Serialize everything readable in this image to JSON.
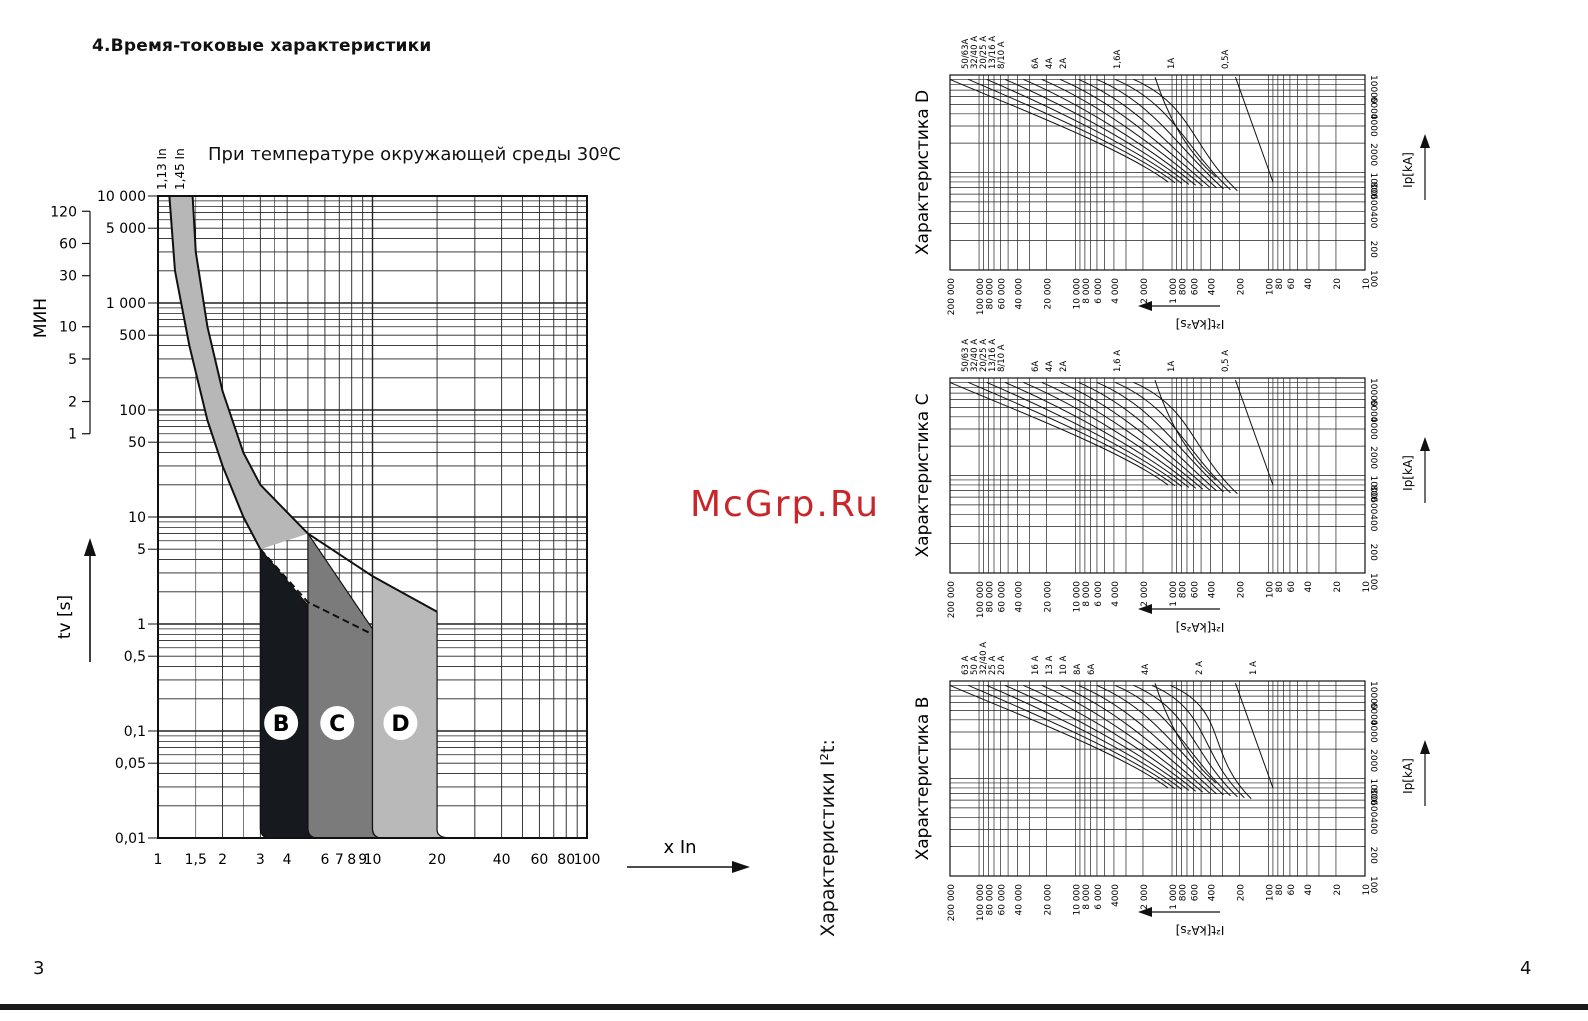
{
  "page": {
    "title": "4.Время-токовые характеристики",
    "temperature_note": "При температуре окружающей среды 30ºС",
    "page_left": "3",
    "page_right": "4",
    "watermark": "McGrp.Ru",
    "i2t_title": "Характеристики I²t:"
  },
  "chart_data": [
    {
      "type": "area",
      "xlabel": "x In",
      "ylabel_seconds": "tv [s]",
      "ylabel_minutes": "МИН",
      "x_scale": "log",
      "y_scale": "log",
      "xlim": [
        1,
        100
      ],
      "ylim": [
        0.01,
        10000
      ],
      "x_ticks": [
        "1",
        "1,5",
        "2",
        "3",
        "4",
        "6",
        "7",
        "8",
        "9",
        "10",
        "20",
        "40",
        "60",
        "80",
        "100"
      ],
      "x_tick_values": [
        1,
        1.5,
        2,
        3,
        4,
        6,
        7,
        8,
        9,
        10,
        20,
        40,
        60,
        80,
        100
      ],
      "y_ticks": [
        "10 000",
        "5 000",
        "1 000",
        "500",
        "100",
        "50",
        "10",
        "5",
        "1",
        "0,5",
        "0,1",
        "0,05",
        "0,01"
      ],
      "y_tick_values": [
        10000,
        5000,
        1000,
        500,
        100,
        50,
        10,
        5,
        1,
        0.5,
        0.1,
        0.05,
        0.01
      ],
      "minute_ticks": [
        "120",
        "60",
        "30",
        "10",
        "5",
        "2",
        "1"
      ],
      "minute_tick_values": [
        120,
        60,
        30,
        10,
        5,
        2,
        1
      ],
      "top_markers": [
        "1,13 In",
        "1,45 In"
      ],
      "curve_labels": [
        "B",
        "C",
        "D"
      ],
      "band_upper": {
        "x": [
          1.45,
          1.5,
          1.7,
          2,
          2.5,
          3,
          5
        ],
        "y": [
          10000,
          3000,
          600,
          150,
          40,
          20,
          7
        ]
      },
      "band_lower": {
        "x": [
          1.13,
          1.2,
          1.4,
          1.7,
          2,
          2.5,
          3
        ],
        "y": [
          10000,
          2000,
          400,
          80,
          30,
          10,
          5
        ]
      },
      "zones": [
        {
          "name": "B",
          "x": [
            3,
            5
          ],
          "color": "#16191d"
        },
        {
          "name": "C",
          "x": [
            5,
            10
          ],
          "color": "#7b7b7b"
        },
        {
          "name": "D",
          "x": [
            10,
            20
          ],
          "color": "#b9b9b9"
        }
      ]
    },
    {
      "type": "line",
      "title": "Характеристика D",
      "xlabel": "I²t[kA²s]",
      "ylabel": "Ip[kA]",
      "x_ticks": [
        "200 000",
        "100 000",
        "80 000",
        "60 000",
        "40 000",
        "20 000",
        "10 000",
        "8 000",
        "6 000",
        "4 000",
        "2 000",
        "1 000",
        "800",
        "600",
        "400",
        "200",
        "100",
        "80",
        "60",
        "40",
        "20",
        "10"
      ],
      "y_ticks": [
        "10000",
        "6000",
        "4000",
        "2000",
        "1000",
        "800",
        "600",
        "400",
        "200",
        "100"
      ],
      "series_labels": [
        "50/63A",
        "32/40 A",
        "20/25 A",
        "13/16 A",
        "8/10 A",
        "6A",
        "4A",
        "2A",
        "1,6A",
        "1A",
        "0,5A"
      ]
    },
    {
      "type": "line",
      "title": "Характеристика C",
      "xlabel": "I²t[kA²s]",
      "ylabel": "Ip[kA]",
      "x_ticks": [
        "200 000",
        "100 000",
        "80 000",
        "60 000",
        "40 000",
        "20 000",
        "10 000",
        "8 000",
        "6 000",
        "4 000",
        "2 000",
        "1 000",
        "800",
        "600",
        "400",
        "200",
        "100",
        "80",
        "60",
        "40",
        "20",
        "10"
      ],
      "y_ticks": [
        "10000",
        "6000",
        "4000",
        "2000",
        "1000",
        "800",
        "600",
        "400",
        "200",
        "100"
      ],
      "series_labels": [
        "50/63 A",
        "32/40 A",
        "20/25 A",
        "13/16 A",
        "8/10 A",
        "6A",
        "4A",
        "2A",
        "1,6 A",
        "1A",
        "0,5 A"
      ]
    },
    {
      "type": "line",
      "title": "Характеристика B",
      "xlabel": "I²t[kA²s]",
      "ylabel": "Ip[kA]",
      "x_ticks": [
        "200 000",
        "100 000",
        "80 000",
        "60 000",
        "40 000",
        "20 000",
        "10 000",
        "8 000",
        "6 000",
        "4000",
        "2 000",
        "1 000",
        "800",
        "600",
        "400",
        "200",
        "100",
        "80",
        "60",
        "40",
        "20",
        "10"
      ],
      "y_ticks": [
        "10000",
        "6000",
        "4000",
        "2000",
        "1000",
        "800",
        "600",
        "400",
        "200",
        "100"
      ],
      "series_labels": [
        "63 A",
        "50 A",
        "32/40 A",
        "25 A",
        "20 A",
        "16 A",
        "13 A",
        "10 A",
        "8A",
        "6A",
        "4A",
        "2 A",
        "1 A"
      ]
    }
  ]
}
